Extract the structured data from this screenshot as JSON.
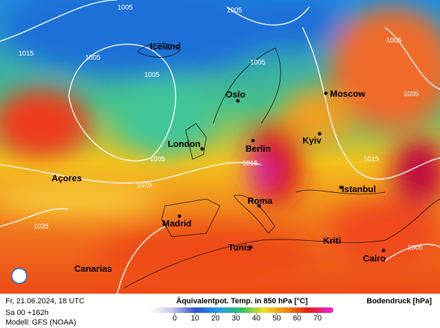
{
  "map": {
    "cities": [
      {
        "label": "Iceland"
      },
      {
        "label": "Oslo"
      },
      {
        "label": "Moscow"
      },
      {
        "label": "London"
      },
      {
        "label": "Berlin"
      },
      {
        "label": "Kyiv"
      },
      {
        "label": "Açores"
      },
      {
        "label": "Istanbul"
      },
      {
        "label": "Roma"
      },
      {
        "label": "Madrid"
      },
      {
        "label": "Kriti"
      },
      {
        "label": "Tunis"
      },
      {
        "label": "Cairo"
      },
      {
        "label": "Canarias"
      }
    ],
    "isobar_labels": [
      "1005",
      "1005",
      "1015",
      "1005",
      "1005",
      "1005",
      "1005",
      "1005",
      "1005",
      "1015",
      "1015",
      "1015",
      "1025",
      "1005"
    ]
  },
  "footer": {
    "date": "Fr, 21.06.2024, 18 UTC",
    "run": "Sa 00 +162h",
    "model": "Modell: GFS (NOAA)",
    "title": "Äquivalentpot. Temp. in 850 hPa [°C]",
    "pressure": "Bodendruck [hPa]"
  },
  "scale": {
    "ticks": [
      0,
      10,
      20,
      30,
      40,
      50,
      60,
      70
    ]
  }
}
